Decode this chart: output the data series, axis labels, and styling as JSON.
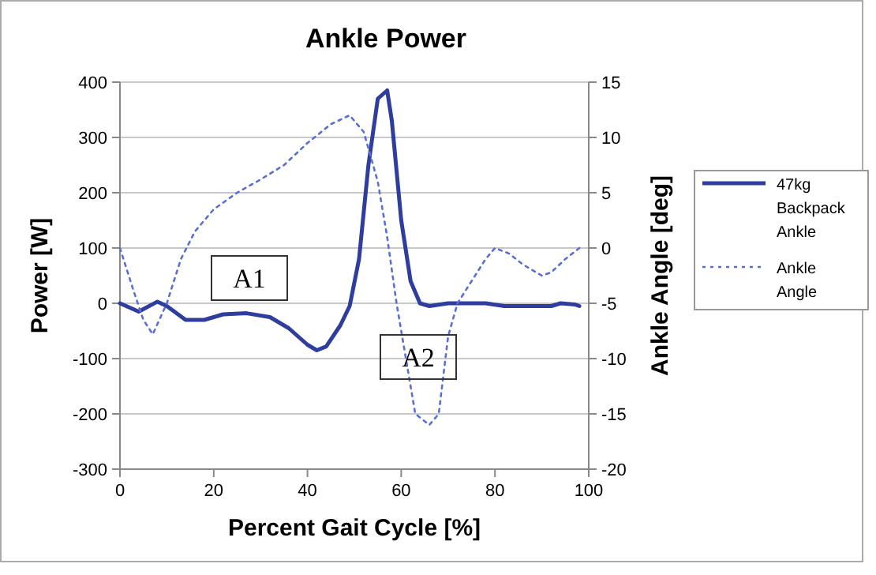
{
  "chart_data": {
    "type": "line",
    "title": "Ankle Power",
    "xlabel": "Percent Gait Cycle [%]",
    "ylabel": "Power [W]",
    "y2label": "Ankle Angle [deg]",
    "xlim": [
      0,
      100
    ],
    "xticks": [
      0,
      20,
      40,
      60,
      80,
      100
    ],
    "ylim": [
      -300,
      400
    ],
    "yticks": [
      -300,
      -200,
      -100,
      0,
      100,
      200,
      300,
      400
    ],
    "y2lim": [
      -20,
      15
    ],
    "y2ticks": [
      -20,
      -15,
      -10,
      -5,
      0,
      5,
      10,
      15
    ],
    "grid": "y",
    "legend": "right",
    "series": [
      {
        "name": "47kg Backpack Ankle",
        "color": "#2f3e9e",
        "line_style": "solid",
        "x": [
          0,
          4,
          8,
          10,
          14,
          18,
          22,
          27,
          32,
          36,
          40,
          42,
          44,
          47,
          49,
          51,
          53,
          55,
          57,
          58,
          60,
          62,
          64,
          66,
          70,
          78,
          82,
          92,
          94,
          97,
          98
        ],
        "values": [
          0,
          -15,
          3,
          -5,
          -30,
          -30,
          -20,
          -18,
          -25,
          -45,
          -75,
          -85,
          -78,
          -40,
          -5,
          80,
          250,
          370,
          385,
          330,
          150,
          40,
          0,
          -5,
          0,
          0,
          -5,
          -5,
          0,
          -2,
          -5
        ]
      },
      {
        "name": "Ankle Angle",
        "color": "#5a6fd6",
        "line_style": "dotted",
        "axis": "y2",
        "x": [
          0,
          3,
          5,
          7,
          10,
          13,
          16,
          20,
          25,
          30,
          35,
          40,
          45,
          49,
          52,
          55,
          57,
          59,
          61,
          63,
          66,
          68,
          70,
          72,
          75,
          78,
          80,
          83,
          86,
          90,
          92,
          95,
          98
        ],
        "values": [
          0,
          -4,
          -6.5,
          -7.8,
          -5,
          -1,
          1.5,
          3.5,
          5,
          6.2,
          7.5,
          9.5,
          11.2,
          12,
          10.5,
          6,
          1,
          -5,
          -10,
          -15,
          -16,
          -15,
          -8,
          -5,
          -3,
          -1,
          0,
          -0.5,
          -1.5,
          -2.5,
          -2.2,
          -1,
          0
        ]
      }
    ],
    "annotations": [
      "A1",
      "A2"
    ]
  }
}
